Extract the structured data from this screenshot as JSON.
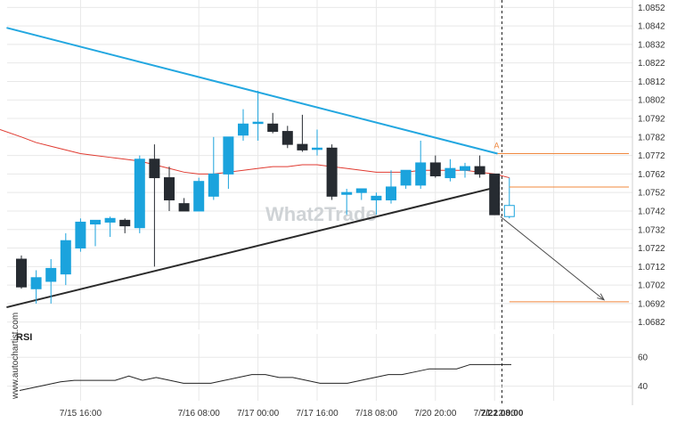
{
  "watermark": "What2Trade",
  "side_credit": "www.autochartist.com",
  "alert_marker": "A",
  "colors": {
    "bull": "#1ba3dd",
    "bear": "#262b31",
    "resistance": "#23a7e0",
    "support": "#2a2a2a",
    "moving_average": "#e03a30",
    "level_lines": "#f0883e",
    "projection": "#4a4a4a",
    "rsi": "#222222",
    "grid": "#e8e8e8"
  },
  "chart_data": {
    "type": "candlestick",
    "instrument_note": "",
    "y_axis": {
      "ticks": [
        "1.0852",
        "1.0842",
        "1.0832",
        "1.0822",
        "1.0812",
        "1.0802",
        "1.0792",
        "1.0782",
        "1.0772",
        "1.0762",
        "1.0752",
        "1.0742",
        "1.0732",
        "1.0722",
        "1.0712",
        "1.0702",
        "1.0692",
        "1.0682"
      ],
      "ylim": [
        1.0678,
        1.0856
      ]
    },
    "x_axis": {
      "ticks": [
        "7/15 16:00",
        "7/16 08:00",
        "7/17 00:00",
        "7/17 16:00",
        "7/18 08:00",
        "7/20 20:00",
        "7/21 12:00",
        "7/22 08:00"
      ],
      "bold_tick": "7/22 08:00",
      "tick_bars": [
        4,
        12,
        16,
        20,
        24,
        28,
        32,
        36
      ]
    },
    "candles": [
      {
        "o": 1.0716,
        "h": 1.0718,
        "l": 1.07,
        "c": 1.0701
      },
      {
        "o": 1.07,
        "h": 1.071,
        "l": 1.0692,
        "c": 1.0706
      },
      {
        "o": 1.0704,
        "h": 1.0716,
        "l": 1.0692,
        "c": 1.0711
      },
      {
        "o": 1.0708,
        "h": 1.073,
        "l": 1.0702,
        "c": 1.0726
      },
      {
        "o": 1.0722,
        "h": 1.0738,
        "l": 1.072,
        "c": 1.0736
      },
      {
        "o": 1.0735,
        "h": 1.0736,
        "l": 1.0723,
        "c": 1.0737
      },
      {
        "o": 1.0736,
        "h": 1.0739,
        "l": 1.0728,
        "c": 1.0738
      },
      {
        "o": 1.0737,
        "h": 1.0738,
        "l": 1.073,
        "c": 1.0734
      },
      {
        "o": 1.0733,
        "h": 1.0772,
        "l": 1.073,
        "c": 1.077
      },
      {
        "o": 1.077,
        "h": 1.0778,
        "l": 1.0712,
        "c": 1.076
      },
      {
        "o": 1.076,
        "h": 1.0766,
        "l": 1.0742,
        "c": 1.0748
      },
      {
        "o": 1.0746,
        "h": 1.0749,
        "l": 1.0742,
        "c": 1.0742
      },
      {
        "o": 1.0742,
        "h": 1.076,
        "l": 1.0742,
        "c": 1.0758
      },
      {
        "o": 1.075,
        "h": 1.0782,
        "l": 1.0748,
        "c": 1.0762
      },
      {
        "o": 1.0762,
        "h": 1.0782,
        "l": 1.0754,
        "c": 1.0782
      },
      {
        "o": 1.0783,
        "h": 1.0797,
        "l": 1.078,
        "c": 1.0789
      },
      {
        "o": 1.079,
        "h": 1.0807,
        "l": 1.078,
        "c": 1.079
      },
      {
        "o": 1.0789,
        "h": 1.0795,
        "l": 1.0784,
        "c": 1.0785
      },
      {
        "o": 1.0785,
        "h": 1.0788,
        "l": 1.0776,
        "c": 1.0778
      },
      {
        "o": 1.0778,
        "h": 1.0794,
        "l": 1.0774,
        "c": 1.0775
      },
      {
        "o": 1.0776,
        "h": 1.0786,
        "l": 1.0772,
        "c": 1.0776
      },
      {
        "o": 1.0776,
        "h": 1.0778,
        "l": 1.0748,
        "c": 1.075
      },
      {
        "o": 1.0751,
        "h": 1.0754,
        "l": 1.074,
        "c": 1.0752
      },
      {
        "o": 1.0752,
        "h": 1.0754,
        "l": 1.0748,
        "c": 1.0754
      },
      {
        "o": 1.0748,
        "h": 1.0752,
        "l": 1.074,
        "c": 1.075
      },
      {
        "o": 1.0748,
        "h": 1.0764,
        "l": 1.0746,
        "c": 1.0755
      },
      {
        "o": 1.0756,
        "h": 1.0764,
        "l": 1.0754,
        "c": 1.0764
      },
      {
        "o": 1.0756,
        "h": 1.078,
        "l": 1.0754,
        "c": 1.0768
      },
      {
        "o": 1.0768,
        "h": 1.0772,
        "l": 1.076,
        "c": 1.0761
      },
      {
        "o": 1.076,
        "h": 1.077,
        "l": 1.0758,
        "c": 1.0765
      },
      {
        "o": 1.0764,
        "h": 1.0768,
        "l": 1.076,
        "c": 1.0766
      },
      {
        "o": 1.0766,
        "h": 1.0772,
        "l": 1.076,
        "c": 1.0762
      },
      {
        "o": 1.0762,
        "h": 1.0762,
        "l": 1.074,
        "c": 1.074
      },
      {
        "o": 1.0739,
        "h": 1.076,
        "l": 1.0738,
        "c": 1.0745
      }
    ],
    "moving_average": [
      1.0782,
      1.0779,
      1.0777,
      1.0775,
      1.0773,
      1.0772,
      1.0771,
      1.077,
      1.0769,
      1.0767,
      1.0765,
      1.0763,
      1.0762,
      1.0762,
      1.0763,
      1.0764,
      1.0765,
      1.0766,
      1.0766,
      1.0767,
      1.0767,
      1.0766,
      1.0765,
      1.0764,
      1.0763,
      1.0763,
      1.0763,
      1.0764,
      1.0764,
      1.0764,
      1.0764,
      1.0763,
      1.0762,
      1.076
    ],
    "resistance_line": {
      "from": {
        "bar": -1,
        "y": 1.0841
      },
      "to": {
        "bar": 32.2,
        "y": 1.0773
      }
    },
    "support_line": {
      "from": {
        "bar": -1,
        "y": 1.069
      },
      "to": {
        "bar": 32.2,
        "y": 1.0755
      }
    },
    "levels": [
      {
        "y": 1.0773,
        "from_bar": 32.2
      },
      {
        "y": 1.0755,
        "from_bar": 33
      },
      {
        "y": 1.0693,
        "from_bar": 33
      }
    ],
    "projection": {
      "from": {
        "bar": 32.4,
        "y": 1.0739
      },
      "to": {
        "bar": 39.4,
        "y": 1.0694
      }
    },
    "signal_bar": 32.5,
    "rsi": {
      "label": "RSI",
      "ticks": [
        60,
        40
      ],
      "ylim": [
        33,
        70
      ],
      "values": [
        37,
        39,
        41,
        43,
        44,
        44,
        44,
        44,
        47,
        44,
        46,
        44,
        42,
        42,
        42,
        44,
        46,
        48,
        48,
        46,
        46,
        44,
        42,
        42,
        42,
        44,
        46,
        48,
        48,
        50,
        52,
        52,
        52,
        55,
        55,
        55,
        55
      ]
    }
  }
}
